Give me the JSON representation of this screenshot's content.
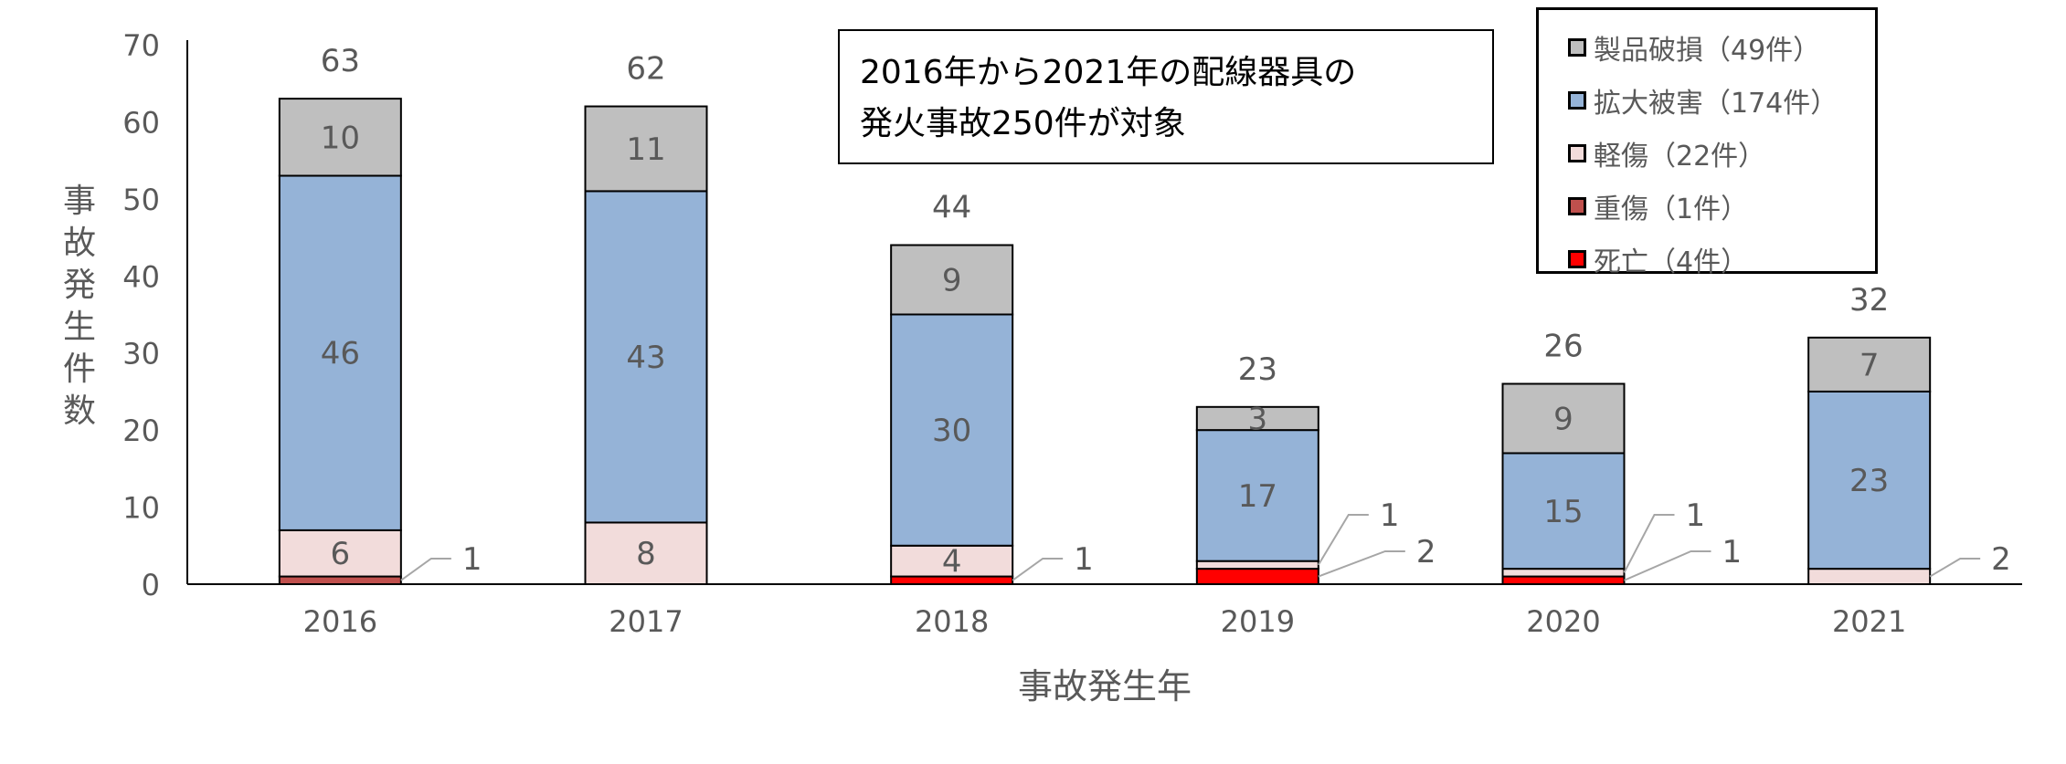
{
  "chart_data": {
    "type": "bar",
    "stacked": true,
    "categories": [
      "2016",
      "2017",
      "2018",
      "2019",
      "2020",
      "2021"
    ],
    "series": [
      {
        "name": "死亡（4件）",
        "key": "death",
        "color": "#ff0000",
        "values": [
          0,
          0,
          1,
          2,
          1,
          0
        ]
      },
      {
        "name": "重傷（1件）",
        "key": "serious",
        "color": "#c0504d",
        "values": [
          1,
          0,
          0,
          0,
          0,
          0
        ]
      },
      {
        "name": "軽傷（22件）",
        "key": "minor",
        "color": "#f2dcdb",
        "values": [
          6,
          8,
          4,
          1,
          1,
          2
        ]
      },
      {
        "name": "拡大被害（174件）",
        "key": "spread",
        "color": "#95b3d7",
        "values": [
          46,
          43,
          30,
          17,
          15,
          23
        ]
      },
      {
        "name": "製品破損（49件）",
        "key": "product",
        "color": "#bfbfbf",
        "values": [
          10,
          11,
          9,
          3,
          9,
          7
        ]
      }
    ],
    "totals": [
      63,
      62,
      44,
      23,
      26,
      32
    ],
    "xlabel": "事故発生年",
    "ylabel": "事故発生件数",
    "ylim": [
      0,
      70
    ],
    "yticks": [
      0,
      10,
      20,
      30,
      40,
      50,
      60,
      70
    ],
    "grid": false,
    "legend_position": "top-right",
    "legend_order": [
      "製品破損（49件）",
      "拡大被害（174件）",
      "軽傷（22件）",
      "重傷（1件）",
      "死亡（4件）"
    ],
    "annotation": [
      "2016年から2021年の配線器具の",
      "発火事故250件が対象"
    ]
  }
}
